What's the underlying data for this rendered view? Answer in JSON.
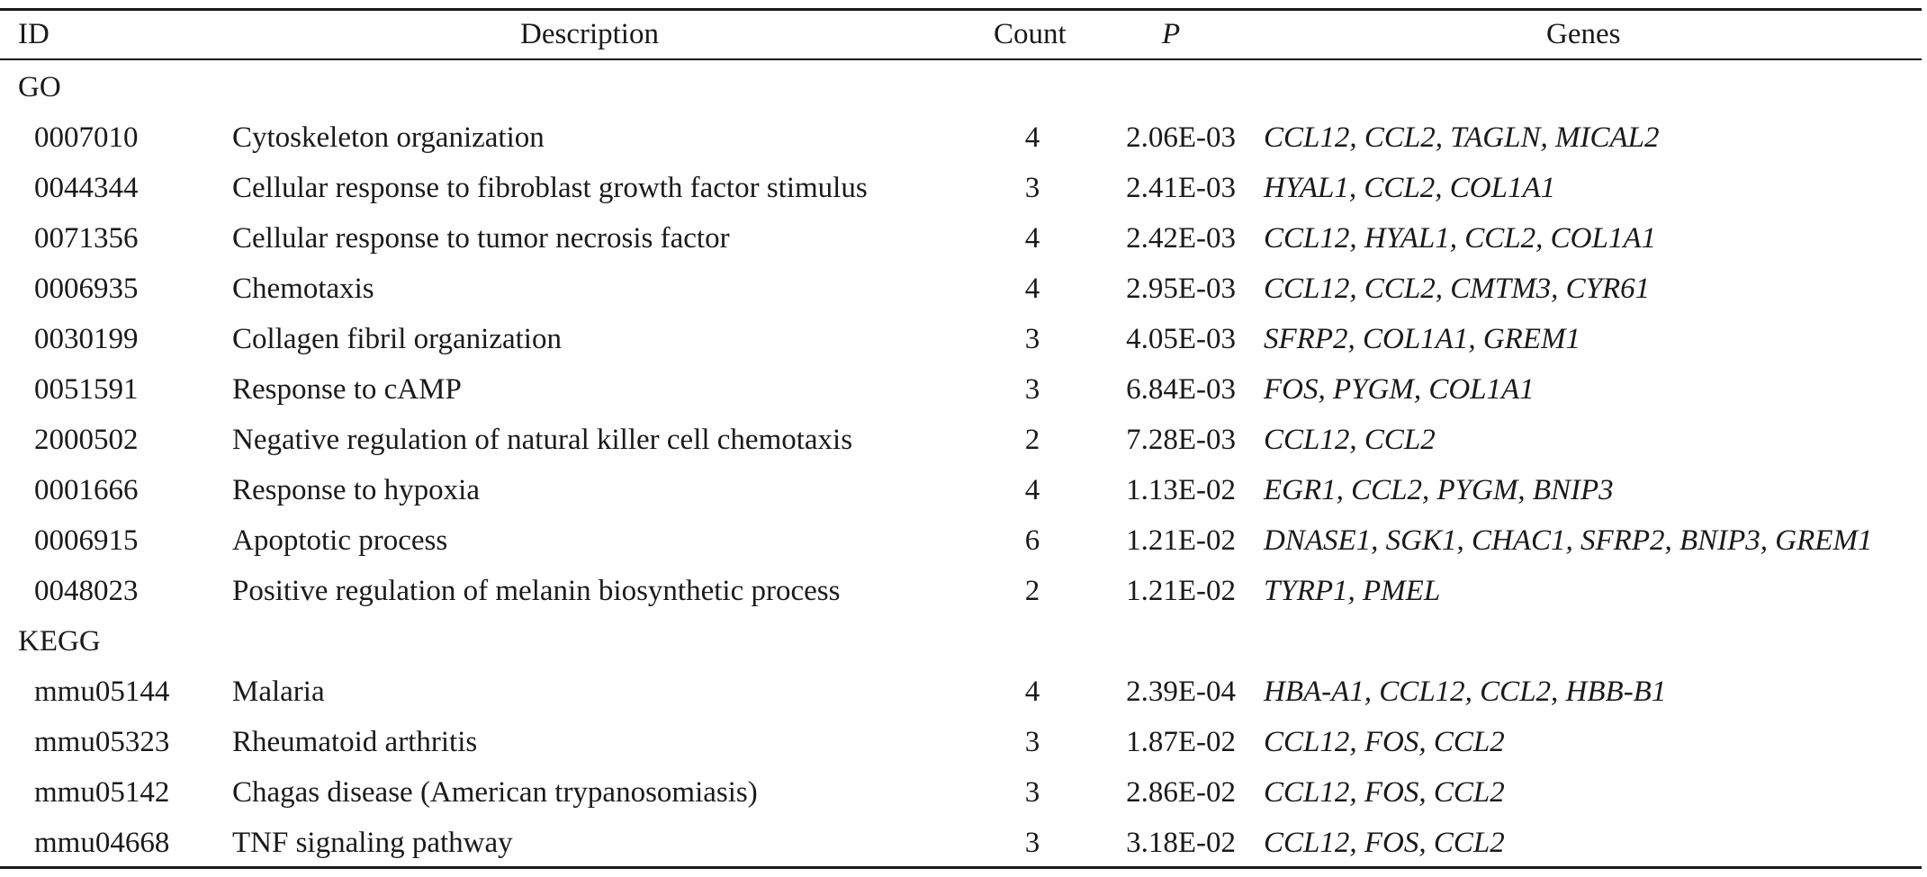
{
  "header": {
    "id": "ID",
    "description": "Description",
    "count": "Count",
    "p": "P",
    "genes": "Genes"
  },
  "sections": [
    {
      "label": "GO",
      "rows": [
        {
          "id": "0007010",
          "description": "Cytoskeleton organization",
          "count": "4",
          "p": "2.06E-03",
          "genes": "CCL12, CCL2, TAGLN, MICAL2"
        },
        {
          "id": "0044344",
          "description": "Cellular response to fibroblast growth factor stimulus",
          "count": "3",
          "p": "2.41E-03",
          "genes": "HYAL1, CCL2, COL1A1"
        },
        {
          "id": "0071356",
          "description": "Cellular response to tumor necrosis factor",
          "count": "4",
          "p": "2.42E-03",
          "genes": "CCL12, HYAL1, CCL2, COL1A1"
        },
        {
          "id": "0006935",
          "description": "Chemotaxis",
          "count": "4",
          "p": "2.95E-03",
          "genes": "CCL12, CCL2, CMTM3, CYR61"
        },
        {
          "id": "0030199",
          "description": "Collagen fibril organization",
          "count": "3",
          "p": "4.05E-03",
          "genes": "SFRP2, COL1A1, GREM1"
        },
        {
          "id": "0051591",
          "description": "Response to cAMP",
          "count": "3",
          "p": "6.84E-03",
          "genes": "FOS, PYGM, COL1A1"
        },
        {
          "id": "2000502",
          "description": "Negative regulation of natural killer cell chemotaxis",
          "count": "2",
          "p": "7.28E-03",
          "genes": "CCL12, CCL2"
        },
        {
          "id": "0001666",
          "description": "Response to hypoxia",
          "count": "4",
          "p": "1.13E-02",
          "genes": "EGR1, CCL2, PYGM, BNIP3"
        },
        {
          "id": "0006915",
          "description": "Apoptotic process",
          "count": "6",
          "p": "1.21E-02",
          "genes": "DNASE1, SGK1, CHAC1, SFRP2, BNIP3, GREM1"
        },
        {
          "id": "0048023",
          "description": "Positive regulation of melanin biosynthetic process",
          "count": "2",
          "p": "1.21E-02",
          "genes": "TYRP1, PMEL"
        }
      ]
    },
    {
      "label": "KEGG",
      "rows": [
        {
          "id": "mmu05144",
          "description": "Malaria",
          "count": "4",
          "p": "2.39E-04",
          "genes": "HBA-A1, CCL12, CCL2, HBB-B1"
        },
        {
          "id": "mmu05323",
          "description": "Rheumatoid arthritis",
          "count": "3",
          "p": "1.87E-02",
          "genes": "CCL12, FOS, CCL2"
        },
        {
          "id": "mmu05142",
          "description": "Chagas disease (American trypanosomiasis)",
          "count": "3",
          "p": "2.86E-02",
          "genes": "CCL12, FOS, CCL2"
        },
        {
          "id": "mmu04668",
          "description": "TNF signaling pathway",
          "count": "3",
          "p": "3.18E-02",
          "genes": "CCL12, FOS, CCL2"
        }
      ]
    }
  ]
}
